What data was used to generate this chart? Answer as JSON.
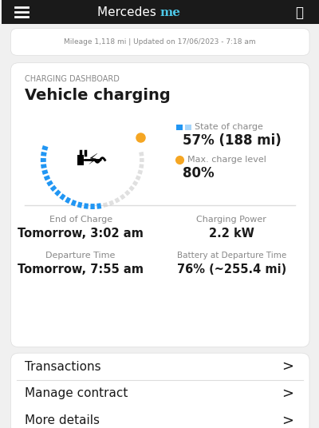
{
  "bg_color": "#f0f0f0",
  "card_color": "#ffffff",
  "header_bg": "#1a1a1a",
  "header_text": "Mercedes me",
  "top_bar_text": "Mileage 1,118 mi | Updated on 17/06/2023 - 7:18 am",
  "section_label": "CHARGING DASHBOARD",
  "section_title": "Vehicle charging",
  "state_label": "State of charge",
  "state_value": "57% (188 mi)",
  "max_label": "Max. charge level",
  "max_value": "80%",
  "gauge_blue_color": "#2196f3",
  "gauge_gray_color": "#cccccc",
  "gauge_yellow_color": "#f5a623",
  "gauge_fill_pct": 0.57,
  "gauge_max_pct": 0.8,
  "field1_label": "End of Charge",
  "field1_value": "Tomorrow, 3:02 am",
  "field2_label": "Charging Power",
  "field2_value": "2.2 kW",
  "field3_label": "Departure Time",
  "field3_value": "Tomorrow, 7:55 am",
  "field4_label": "Battery at Departure Time",
  "field4_value": "76% (~255.4 mi)",
  "menu_items": [
    "Transactions",
    "Manage contract",
    "More details"
  ],
  "label_color": "#888888",
  "value_color": "#1a1a1a",
  "divider_color": "#dddddd"
}
